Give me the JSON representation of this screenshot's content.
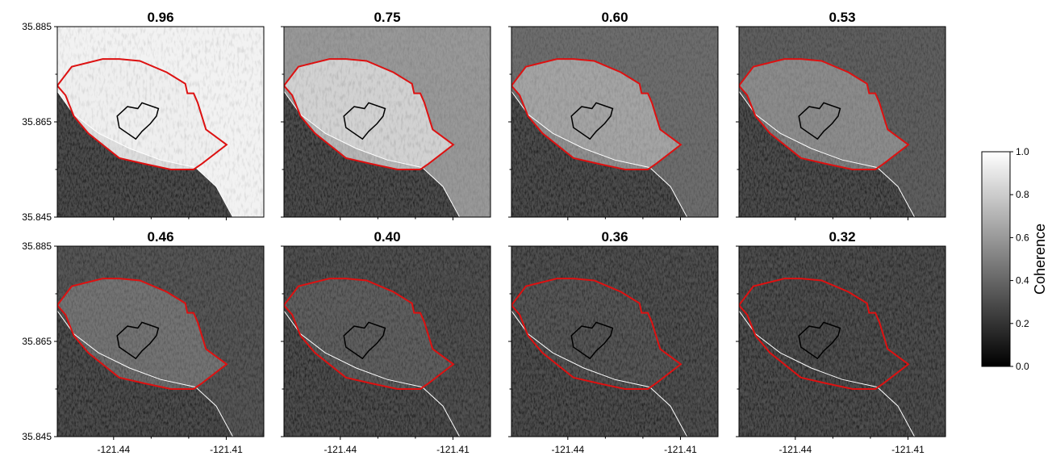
{
  "chart_data": {
    "type": "heatmap",
    "layout": "2x4 small multiples",
    "panels": [
      {
        "title": "0.96",
        "brightness": 0.96
      },
      {
        "title": "0.75",
        "brightness": 0.75
      },
      {
        "title": "0.60",
        "brightness": 0.6
      },
      {
        "title": "0.53",
        "brightness": 0.53
      },
      {
        "title": "0.46",
        "brightness": 0.46
      },
      {
        "title": "0.40",
        "brightness": 0.4
      },
      {
        "title": "0.36",
        "brightness": 0.36
      },
      {
        "title": "0.32",
        "brightness": 0.32
      }
    ],
    "xaxis": {
      "ticks": [
        -121.44,
        -121.41
      ],
      "tick_labels": [
        "-121.44",
        "-121.41"
      ]
    },
    "yaxis": {
      "ticks": [
        35.885,
        35.865,
        35.845
      ],
      "tick_labels": [
        "35.885",
        "35.865",
        "35.845"
      ]
    },
    "colorbar": {
      "label": "Coherence",
      "colormap": "gray",
      "range": [
        0.0,
        1.0
      ],
      "tick_labels": [
        "0.0",
        "0.2",
        "0.4",
        "0.6",
        "0.8",
        "1.0"
      ]
    },
    "overlays": [
      {
        "name": "outer boundary",
        "color": "#dd1111"
      },
      {
        "name": "inner region",
        "color": "#000000"
      },
      {
        "name": "coastline",
        "color": "#ffffff"
      }
    ]
  }
}
